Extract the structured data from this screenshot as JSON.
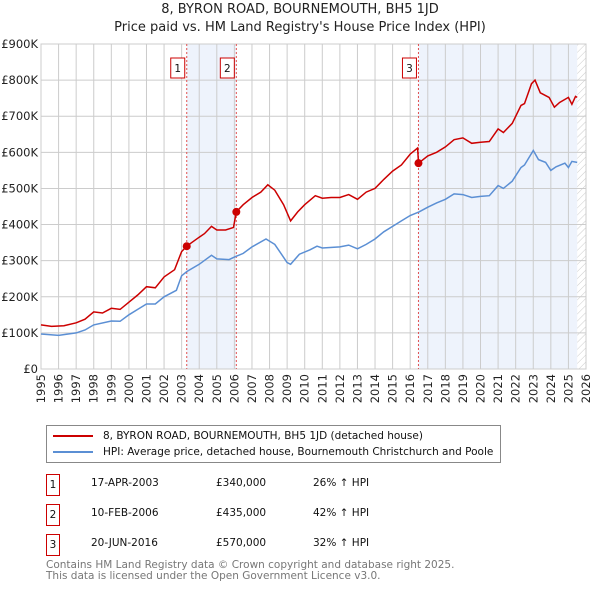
{
  "chart_data": {
    "type": "line",
    "title": "8, BYRON ROAD, BOURNEMOUTH, BH5 1JD",
    "subtitle": "Price paid vs. HM Land Registry's House Price Index (HPI)",
    "xlim": [
      1995,
      2026
    ],
    "ylim": [
      0,
      900000
    ],
    "x_ticks": [
      "1995",
      "1996",
      "1997",
      "1998",
      "1999",
      "2000",
      "2001",
      "2002",
      "2003",
      "2004",
      "2005",
      "2006",
      "2007",
      "2008",
      "2009",
      "2010",
      "2011",
      "2012",
      "2013",
      "2014",
      "2015",
      "2016",
      "2017",
      "2018",
      "2019",
      "2020",
      "2021",
      "2022",
      "2023",
      "2024",
      "2025",
      "2026"
    ],
    "y_ticks": [
      {
        "v": 0,
        "label": "£0"
      },
      {
        "v": 100000,
        "label": "£100K"
      },
      {
        "v": 200000,
        "label": "£200K"
      },
      {
        "v": 300000,
        "label": "£300K"
      },
      {
        "v": 400000,
        "label": "£400K"
      },
      {
        "v": 500000,
        "label": "£500K"
      },
      {
        "v": 600000,
        "label": "£600K"
      },
      {
        "v": 700000,
        "label": "£700K"
      },
      {
        "v": 800000,
        "label": "£800K"
      },
      {
        "v": 900000,
        "label": "£900K"
      }
    ],
    "grid": true,
    "legend_placement": "below",
    "series": [
      {
        "name": "8, BYRON ROAD, BOURNEMOUTH, BH5 1JD (detached house)",
        "color": "#cc0000",
        "x": [
          1995,
          1995.6,
          1996.3,
          1997,
          1997.5,
          1998,
          1998.5,
          1999,
          1999.5,
          2000,
          2000.5,
          2001,
          2001.5,
          2002,
          2002.6,
          2003,
          2003.29,
          2004,
          2004.3,
          2004.7,
          2005,
          2005.5,
          2005.95,
          2006.11,
          2006.5,
          2007,
          2007.5,
          2007.9,
          2008.3,
          2008.8,
          2009.2,
          2009.6,
          2010,
          2010.6,
          2011,
          2011.5,
          2012,
          2012.5,
          2013,
          2013.5,
          2014,
          2014.5,
          2015,
          2015.5,
          2016,
          2016.42,
          2016.47,
          2017,
          2017.5,
          2018,
          2018.5,
          2019,
          2019.5,
          2020,
          2020.5,
          2021,
          2021.3,
          2021.8,
          2022.3,
          2022.5,
          2022.9,
          2023.1,
          2023.4,
          2023.9,
          2024.2,
          2024.5,
          2025,
          2025.2,
          2025.4,
          2025.5
        ],
        "values": [
          122000,
          118000,
          120000,
          128000,
          138000,
          158000,
          155000,
          168000,
          165000,
          185000,
          205000,
          228000,
          225000,
          255000,
          275000,
          325000,
          340000,
          365000,
          375000,
          395000,
          385000,
          385000,
          392000,
          435000,
          455000,
          475000,
          490000,
          510000,
          495000,
          455000,
          410000,
          435000,
          455000,
          480000,
          473000,
          475000,
          475000,
          483000,
          470000,
          490000,
          500000,
          525000,
          548000,
          565000,
          595000,
          612000,
          570000,
          590000,
          600000,
          615000,
          635000,
          640000,
          625000,
          628000,
          630000,
          665000,
          655000,
          680000,
          730000,
          735000,
          790000,
          800000,
          765000,
          752000,
          725000,
          738000,
          752000,
          733000,
          755000,
          752000
        ]
      },
      {
        "name": "HPI: Average price, detached house, Bournemouth Christchurch and Poole",
        "color": "#5b8fd4",
        "x": [
          1995,
          1996,
          1997,
          1997.5,
          1998,
          1999,
          1999.5,
          2000,
          2000.5,
          2001,
          2001.5,
          2002,
          2002.7,
          2003,
          2003.3,
          2004,
          2004.7,
          2005,
          2005.7,
          2006,
          2006.5,
          2007,
          2007.8,
          2008.3,
          2009,
          2009.2,
          2009.7,
          2010.3,
          2010.7,
          2011,
          2012,
          2012.5,
          2013,
          2013.5,
          2014,
          2014.5,
          2015,
          2015.5,
          2016,
          2016.5,
          2017,
          2017.5,
          2018,
          2018.5,
          2019,
          2019.5,
          2020,
          2020.5,
          2021,
          2021.3,
          2021.8,
          2022.3,
          2022.5,
          2023,
          2023.3,
          2023.7,
          2024,
          2024.3,
          2024.8,
          2025,
          2025.2,
          2025.5
        ],
        "values": [
          97000,
          93000,
          100000,
          108000,
          122000,
          133000,
          132000,
          150000,
          165000,
          180000,
          180000,
          200000,
          218000,
          258000,
          270000,
          290000,
          315000,
          305000,
          303000,
          310000,
          320000,
          338000,
          360000,
          345000,
          295000,
          290000,
          318000,
          330000,
          340000,
          335000,
          338000,
          343000,
          333000,
          345000,
          360000,
          380000,
          395000,
          410000,
          425000,
          435000,
          448000,
          460000,
          470000,
          485000,
          483000,
          475000,
          478000,
          480000,
          508000,
          500000,
          520000,
          558000,
          565000,
          605000,
          580000,
          572000,
          550000,
          560000,
          570000,
          558000,
          575000,
          572000
        ]
      }
    ],
    "sales": [
      {
        "id": "1",
        "x": 2003.29,
        "value": 340000
      },
      {
        "id": "2",
        "x": 2006.11,
        "value": 435000
      },
      {
        "id": "3",
        "x": 2016.47,
        "value": 570000
      }
    ],
    "shaded_ranges": [
      [
        2003.29,
        2006.11
      ],
      [
        2016.47,
        2025.5
      ]
    ],
    "hatched_from": 2025.5
  },
  "title_line1": "8, BYRON ROAD, BOURNEMOUTH, BH5 1JD",
  "title_line2": "Price paid vs. HM Land Registry's House Price Index (HPI)",
  "legend": {
    "red": "8, BYRON ROAD, BOURNEMOUTH, BH5 1JD (detached house)",
    "blue": "HPI: Average price, detached house, Bournemouth Christchurch and Poole"
  },
  "transactions": [
    {
      "num": "1",
      "date": "17-APR-2003",
      "price": "£340,000",
      "hpi": "26% ↑ HPI"
    },
    {
      "num": "2",
      "date": "10-FEB-2006",
      "price": "£435,000",
      "hpi": "42% ↑ HPI"
    },
    {
      "num": "3",
      "date": "20-JUN-2016",
      "price": "£570,000",
      "hpi": "32% ↑ HPI"
    }
  ],
  "footer": {
    "line1": "Contains HM Land Registry data © Crown copyright and database right 2025.",
    "line2": "This data is licensed under the Open Government Licence v3.0."
  }
}
